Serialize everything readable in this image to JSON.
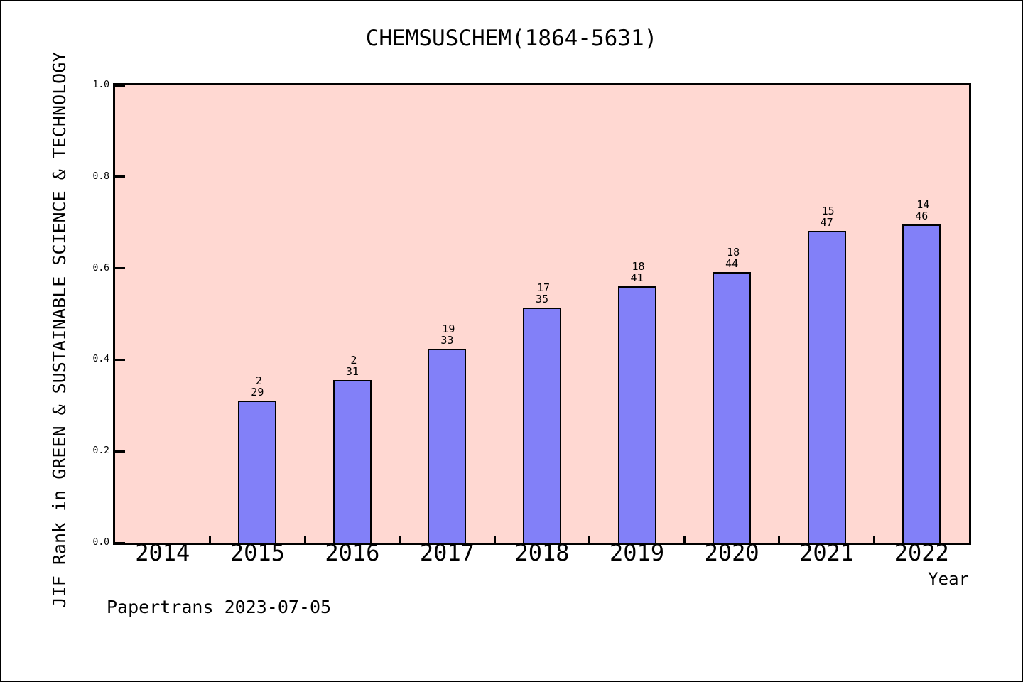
{
  "footer": {
    "credit": "Papertrans 2023-07-05"
  },
  "chart_data": {
    "type": "bar",
    "title": "CHEMSUSCHEM(1864-5631)",
    "xlabel": "Year",
    "ylabel": "JIF Rank in GREEN & SUSTAINABLE SCIENCE & TECHNOLOGY",
    "categories": [
      "2014",
      "2015",
      "2016",
      "2017",
      "2018",
      "2019",
      "2020",
      "2021",
      "2022"
    ],
    "values": [
      null,
      0.31,
      0.355,
      0.424,
      0.514,
      0.561,
      0.591,
      0.681,
      0.696
    ],
    "annotations": [
      {
        "year": "2015",
        "rank": "2",
        "total": "29"
      },
      {
        "year": "2016",
        "rank": "2",
        "total": "31"
      },
      {
        "year": "2017",
        "rank": "19",
        "total": "33"
      },
      {
        "year": "2018",
        "rank": "17",
        "total": "35"
      },
      {
        "year": "2019",
        "rank": "18",
        "total": "41"
      },
      {
        "year": "2020",
        "rank": "18",
        "total": "44"
      },
      {
        "year": "2021",
        "rank": "15",
        "total": "47"
      },
      {
        "year": "2022",
        "rank": "14",
        "total": "46"
      }
    ],
    "ylim": [
      0.0,
      1.0
    ],
    "yticks": [
      "0.0",
      "0.2",
      "0.4",
      "0.6",
      "0.8",
      "1.0"
    ],
    "grid": false,
    "legend_position": "none",
    "colors": {
      "bar_fill": "#8280f8",
      "bar_border": "#000000",
      "plot_background": "#ffd8d2",
      "page_background": "#ffffff",
      "text": "#000000"
    }
  }
}
